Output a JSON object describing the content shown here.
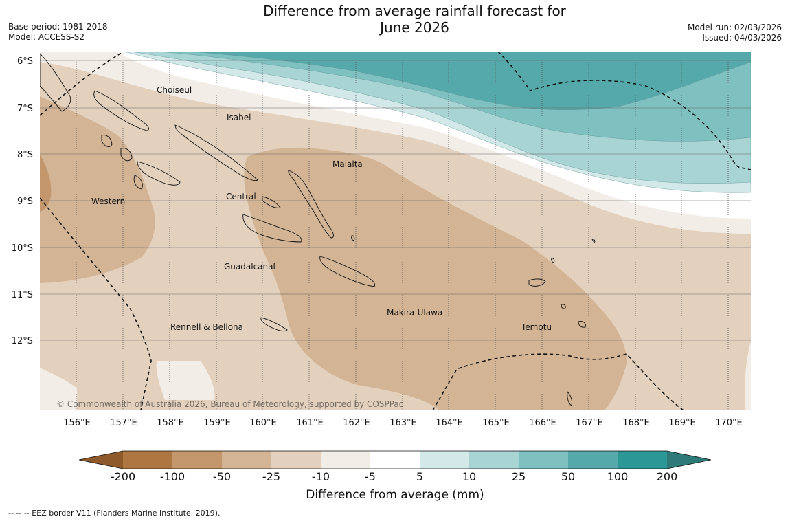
{
  "header": {
    "title_line1": "Difference from average rainfall forecast for",
    "title_line2": "June 2026",
    "base_period": "Base period: 1981-2018",
    "model": "Model: ACCESS-S2",
    "model_run": "Model run: 02/03/2026",
    "issued": "Issued: 04/03/2026"
  },
  "map": {
    "lat_labels": [
      "6°S",
      "7°S",
      "8°S",
      "9°S",
      "10°S",
      "11°S",
      "12°S"
    ],
    "lon_labels": [
      "156°E",
      "157°E",
      "158°E",
      "159°E",
      "160°E",
      "161°E",
      "162°E",
      "163°E",
      "164°E",
      "165°E",
      "166°E",
      "167°E",
      "168°E",
      "169°E",
      "170°E"
    ],
    "regions": [
      "Choiseul",
      "Isabel",
      "Malaita",
      "Central",
      "Western",
      "Guadalcanal",
      "Makira-Ulawa",
      "Rennell & Bellona",
      "Temotu"
    ],
    "copyright": "© Commonwealth of Australia 2026, Bureau of Meteorology, supported by COSPPac"
  },
  "colorbar": {
    "label": "Difference from average (mm)",
    "ticks": [
      "-200",
      "-100",
      "-50",
      "-25",
      "-10",
      "-5",
      "5",
      "10",
      "25",
      "50",
      "100",
      "200"
    ],
    "colors": {
      "below_min": "#8f5a2b",
      "lt_m100": "#ae7640",
      "m100_m50": "#c3966b",
      "m50_m25": "#d3b494",
      "m25_m10": "#e3d1be",
      "m10_m5": "#f3ede7",
      "m5_p5": "#ffffff",
      "p5_p10": "#d3e8e8",
      "p10_p25": "#a8d4d4",
      "p25_p50": "#7fc1c1",
      "p50_p100": "#56a9ab",
      "p100_p200": "#2b9896",
      "above_max": "#2d7a78"
    }
  },
  "footer": {
    "eez_note": "--  --  -- EEZ border V11 (Flanders Marine Institute, 2019)."
  }
}
